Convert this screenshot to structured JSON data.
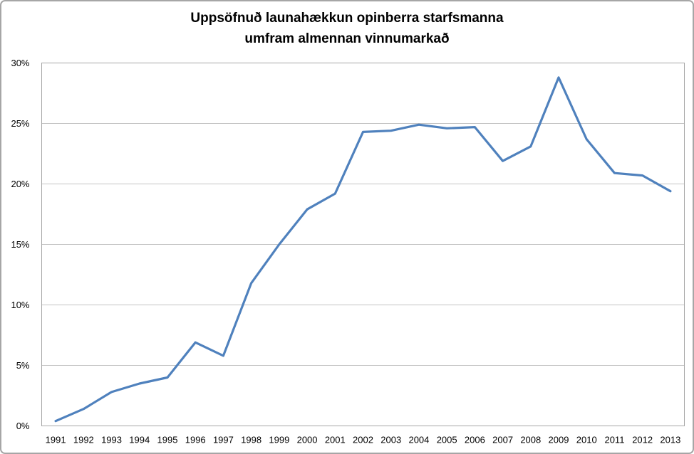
{
  "figure": {
    "background": "#ffffff",
    "border_color": "#a6a6a6"
  },
  "chart_data": {
    "type": "line",
    "title": "Uppsöfnuð launahækkun opinberra starfsmanna umfram almennan vinnumarkað",
    "title_lines": [
      "Uppsöfnuð launahækkun opinberra starfsmanna",
      "umfram almennan vinnumarkað"
    ],
    "xlabel": "",
    "ylabel": "",
    "categories": [
      "1991",
      "1992",
      "1993",
      "1994",
      "1995",
      "1996",
      "1997",
      "1998",
      "1999",
      "2000",
      "2001",
      "2002",
      "2003",
      "2004",
      "2005",
      "2006",
      "2007",
      "2008",
      "2009",
      "2010",
      "2011",
      "2012",
      "2013"
    ],
    "values": [
      0.4,
      1.4,
      2.8,
      3.5,
      4.0,
      6.9,
      5.8,
      11.8,
      15.0,
      17.9,
      19.2,
      24.3,
      24.4,
      24.9,
      24.6,
      24.7,
      21.9,
      23.1,
      28.8,
      23.7,
      20.9,
      20.7,
      19.4
    ],
    "ylim": [
      0,
      30
    ],
    "yticks": [
      0,
      5,
      10,
      15,
      20,
      25,
      30
    ],
    "ytick_labels": [
      "0%",
      "5%",
      "10%",
      "15%",
      "20%",
      "25%",
      "30%"
    ],
    "grid": "horizontal",
    "legend": "none",
    "line_color": "#4f81bd",
    "gridline_color": "#c3c3c3",
    "axis_color": "#a6a6a6",
    "text_color": "#000000"
  }
}
